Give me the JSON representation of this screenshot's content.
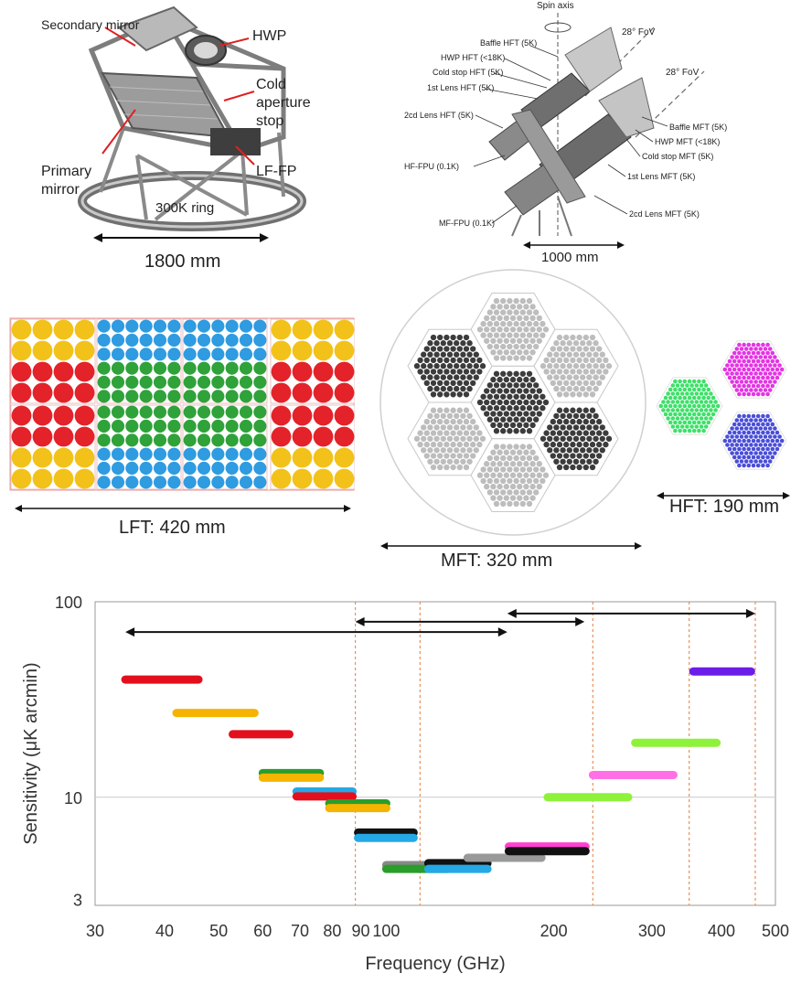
{
  "lft_telescope": {
    "labels": {
      "secondary_mirror": "Secondary mirror",
      "hwp": "HWP",
      "cold_aperture_stop": [
        "Cold",
        "aperture",
        "stop"
      ],
      "primary_mirror": [
        "Primary",
        "mirror"
      ],
      "lf_fp": "LF-FP",
      "ring": "300K ring"
    },
    "dimension": "1800 mm"
  },
  "hft_mft_telescope": {
    "spin_axis": "Spin axis",
    "fov_hft": "28° FoV",
    "fov_mft": "28° FoV",
    "labels_left": [
      "Baffle HFT (5K)",
      "HWP HFT (<18K)",
      "Cold stop HFT (5K)",
      "1st Lens HFT (5K)",
      "2cd Lens HFT (5K)",
      "HF-FPU (0.1K)",
      "MF-FPU (0.1K)"
    ],
    "labels_right": [
      "Baffle MFT (5K)",
      "HWP MFT (<18K)",
      "Cold stop MFT (5K)",
      "1st Lens MFT (5K)",
      "2cd Lens MFT (5K)"
    ],
    "dimension": "1000 mm"
  },
  "focal_planes": {
    "lft_label": "LFT: 420 mm",
    "mft_label": "MFT: 320 mm",
    "hft_label": "HFT: 190 mm",
    "colors": {
      "yellow": "#f2c21a",
      "red": "#e3222a",
      "blue": "#2f9be0",
      "green": "#2fa23a",
      "dark_gray": "#3c3c3c",
      "light_gray": "#bdbdbd",
      "hft_green": "#3fe06a",
      "hft_magenta": "#e434e4",
      "hft_blue": "#4a4ed8"
    }
  },
  "chart_data": {
    "type": "range-bars",
    "xlabel": "Frequency (GHz)",
    "ylabel": "Sensitivity (μK arcmin)",
    "x_scale": "log",
    "y_scale": "log",
    "xlim": [
      30,
      500
    ],
    "ylim": [
      2.8,
      100
    ],
    "x_ticks": [
      30,
      40,
      50,
      60,
      70,
      80,
      90,
      100,
      200,
      300,
      400,
      500
    ],
    "y_ticks": [
      3,
      10,
      100
    ],
    "hgrid": [
      10
    ],
    "band_boundaries_ghz": [
      88,
      115,
      235,
      350,
      460
    ],
    "coverage_arrows": [
      {
        "from": 34,
        "to": 165
      },
      {
        "from": 88,
        "to": 227
      },
      {
        "from": 165,
        "to": 460
      }
    ],
    "bands": [
      {
        "from": 34,
        "to": 46,
        "value": 40,
        "color": "#e30f1c"
      },
      {
        "from": 42,
        "to": 58,
        "value": 27,
        "color": "#f5b400"
      },
      {
        "from": 53,
        "to": 67,
        "value": 21,
        "color": "#e30f1c"
      },
      {
        "from": 60,
        "to": 76,
        "value": 13.3,
        "color": "#2a9d2a"
      },
      {
        "from": 60,
        "to": 76,
        "value": 12.6,
        "color": "#f5b400"
      },
      {
        "from": 69,
        "to": 87,
        "value": 10.7,
        "color": "#25a8e6"
      },
      {
        "from": 69,
        "to": 87,
        "value": 10.1,
        "color": "#e30f1c"
      },
      {
        "from": 79,
        "to": 100,
        "value": 9.3,
        "color": "#2a9d2a"
      },
      {
        "from": 79,
        "to": 100,
        "value": 8.8,
        "color": "#f5b400"
      },
      {
        "from": 89,
        "to": 112,
        "value": 6.6,
        "color": "#111111"
      },
      {
        "from": 89,
        "to": 112,
        "value": 6.2,
        "color": "#25a8e6"
      },
      {
        "from": 100,
        "to": 129,
        "value": 4.5,
        "color": "#888888"
      },
      {
        "from": 100,
        "to": 129,
        "value": 4.3,
        "color": "#2a9d2a"
      },
      {
        "from": 119,
        "to": 152,
        "value": 4.6,
        "color": "#111111"
      },
      {
        "from": 119,
        "to": 152,
        "value": 4.3,
        "color": "#25a8e6"
      },
      {
        "from": 140,
        "to": 190,
        "value": 4.9,
        "color": "#999999"
      },
      {
        "from": 166,
        "to": 228,
        "value": 5.6,
        "color": "#ff40d0"
      },
      {
        "from": 166,
        "to": 228,
        "value": 5.3,
        "color": "#111111"
      },
      {
        "from": 195,
        "to": 272,
        "value": 10,
        "color": "#8ef23a"
      },
      {
        "from": 235,
        "to": 328,
        "value": 13,
        "color": "#ff70e6"
      },
      {
        "from": 280,
        "to": 392,
        "value": 19,
        "color": "#8ef23a"
      },
      {
        "from": 356,
        "to": 452,
        "value": 44,
        "color": "#6a1ee8"
      }
    ]
  }
}
